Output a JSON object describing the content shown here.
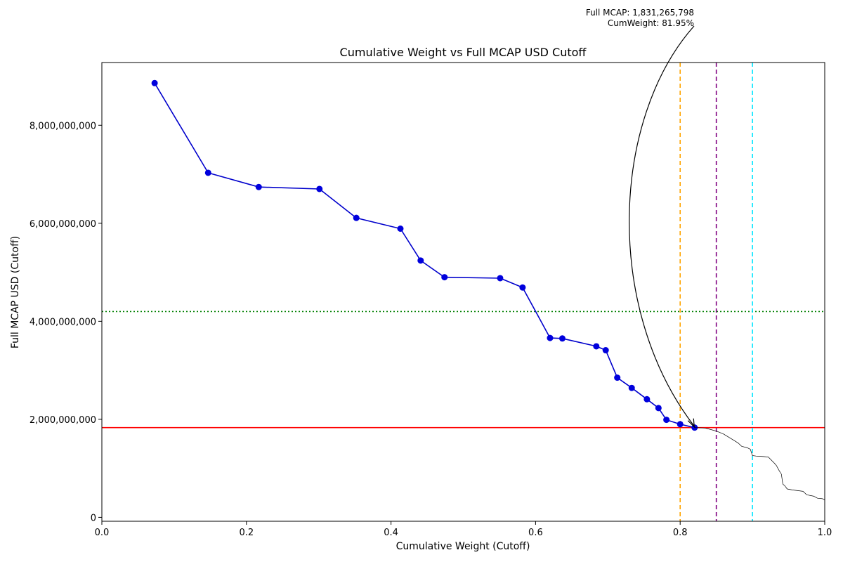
{
  "chart_data": {
    "type": "line",
    "title": "Cumulative Weight vs Full MCAP USD Cutoff",
    "xlabel": "Cumulative Weight (Cutoff)",
    "ylabel": "Full MCAP USD (Cutoff)",
    "xlim": [
      0.0,
      1.0
    ],
    "ylim": [
      -80000000,
      9280000000
    ],
    "x_ticks": [
      0.0,
      0.2,
      0.4,
      0.6,
      0.8,
      1.0
    ],
    "x_tick_labels": [
      "0.0",
      "0.2",
      "0.4",
      "0.6",
      "0.8",
      "1.0"
    ],
    "y_ticks": [
      0,
      2000000000,
      4000000000,
      6000000000,
      8000000000
    ],
    "y_tick_labels": [
      "0",
      "2,000,000,000",
      "4,000,000,000",
      "6,000,000,000",
      "8,000,000,000"
    ],
    "grid": false,
    "series": [
      {
        "style": "markers",
        "color": "#0000cc",
        "marker_color": "#0000dd",
        "points": [
          [
            0.073,
            8860000000
          ],
          [
            0.147,
            7030000000
          ],
          [
            0.217,
            6740000000
          ],
          [
            0.301,
            6700000000
          ],
          [
            0.352,
            6110000000
          ],
          [
            0.413,
            5890000000
          ],
          [
            0.441,
            5240000000
          ],
          [
            0.474,
            4900000000
          ],
          [
            0.551,
            4880000000
          ],
          [
            0.582,
            4690000000
          ],
          [
            0.62,
            3660000000
          ],
          [
            0.637,
            3650000000
          ],
          [
            0.684,
            3490000000
          ],
          [
            0.697,
            3410000000
          ],
          [
            0.713,
            2850000000
          ],
          [
            0.733,
            2640000000
          ],
          [
            0.754,
            2410000000
          ],
          [
            0.77,
            2230000000
          ],
          [
            0.781,
            1990000000
          ],
          [
            0.8,
            1900000000
          ],
          [
            0.82,
            1831265798
          ]
        ]
      },
      {
        "style": "thin",
        "color": "#000000",
        "points": [
          [
            0.82,
            1831265798
          ],
          [
            0.835,
            1820000000
          ],
          [
            0.85,
            1760000000
          ],
          [
            0.86,
            1700000000
          ],
          [
            0.87,
            1610000000
          ],
          [
            0.88,
            1520000000
          ],
          [
            0.885,
            1450000000
          ],
          [
            0.893,
            1420000000
          ],
          [
            0.897,
            1390000000
          ],
          [
            0.9,
            1260000000
          ],
          [
            0.905,
            1250000000
          ],
          [
            0.915,
            1240000000
          ],
          [
            0.922,
            1230000000
          ],
          [
            0.93,
            1110000000
          ],
          [
            0.933,
            1060000000
          ],
          [
            0.937,
            950000000
          ],
          [
            0.94,
            880000000
          ],
          [
            0.942,
            680000000
          ],
          [
            0.945,
            640000000
          ],
          [
            0.948,
            580000000
          ],
          [
            0.955,
            560000000
          ],
          [
            0.97,
            530000000
          ],
          [
            0.975,
            460000000
          ],
          [
            0.985,
            430000000
          ],
          [
            0.99,
            390000000
          ],
          [
            0.997,
            380000000
          ],
          [
            1.0,
            350000000
          ]
        ]
      }
    ],
    "reference_lines": [
      {
        "orientation": "horizontal",
        "value": 1831265798,
        "color": "#ff0000",
        "style": "solid"
      },
      {
        "orientation": "horizontal",
        "value": 4200000000,
        "color": "#008000",
        "style": "dotted"
      },
      {
        "orientation": "vertical",
        "value": 0.8,
        "color": "#ffa500",
        "style": "dashed"
      },
      {
        "orientation": "vertical",
        "value": 0.85,
        "color": "#800080",
        "style": "dashed"
      },
      {
        "orientation": "vertical",
        "value": 0.9,
        "color": "#00e5ff",
        "style": "dashed"
      }
    ],
    "annotation": {
      "lines": [
        "Full MCAP: 1,831,265,798",
        "CumWeight: 81.95%"
      ],
      "target": [
        0.8195,
        1831265798
      ]
    }
  }
}
